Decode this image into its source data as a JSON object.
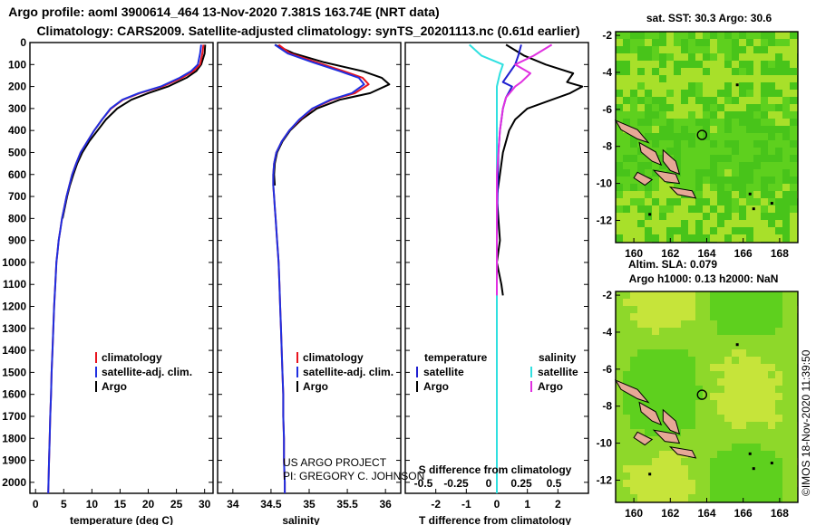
{
  "figure": {
    "title_line1": "Argo profile: aoml 3900614_464 13-Nov-2020 7.381S 163.74E (NRT data)",
    "title_line2": "Climatology: CARS2009. Satellite-adjusted climatology: synTS_20201113.nc (0.61d earlier)",
    "credit_line1": "US ARGO PROJECT",
    "credit_line2": "PI: GREGORY C. JOHNSON",
    "timestamp": "©IMOS 18-Nov-2020 11:39:50"
  },
  "colors": {
    "argo": "#000000",
    "climatology": "#e8141e",
    "satellite_adj": "#1f2fe0",
    "sat_temp_diff": "#2020d0",
    "sat_salt_diff": "#30e0e0",
    "argo_salt_diff": "#e030e0",
    "map_green": "#5ed01e",
    "map_yellow": "#e8e83a",
    "land": "#e6a896"
  },
  "chart_data": [
    {
      "type": "line",
      "xlabel": "temperature (deg C)",
      "ylabel": "",
      "xlim": [
        -1,
        31.5
      ],
      "ylim": [
        2050,
        0
      ],
      "x_ticks": [
        0,
        5,
        10,
        15,
        20,
        25,
        30
      ],
      "y_ticks": [
        0,
        100,
        200,
        300,
        400,
        500,
        600,
        700,
        800,
        900,
        1000,
        1100,
        1200,
        1300,
        1400,
        1500,
        1600,
        1700,
        1800,
        1900,
        2000
      ],
      "legend": [
        "climatology",
        "satellite-adj. clim.",
        "Argo"
      ],
      "series": [
        {
          "name": "Argo",
          "color_key": "argo",
          "x": [
            30.1,
            30.0,
            29.4,
            28.5,
            26.8,
            23.5,
            20.0,
            17.0,
            14.5,
            12.5,
            11.0,
            9.5,
            8.3,
            7.4,
            6.7,
            6.1,
            5.6,
            5.2,
            4.8
          ],
          "y": [
            10,
            50,
            100,
            130,
            160,
            200,
            230,
            260,
            300,
            350,
            400,
            450,
            500,
            550,
            600,
            650,
            700,
            750,
            800
          ]
        },
        {
          "name": "climatology",
          "color_key": "climatology",
          "x": [
            29.8,
            29.6,
            29.2,
            28.0,
            26.0,
            22.5,
            18.5,
            15.5,
            13.4,
            11.8,
            10.4,
            9.2,
            8.0,
            7.2,
            6.5,
            6.0,
            5.5,
            5.1,
            4.7,
            4.4,
            4.1,
            3.9,
            3.7,
            3.5,
            3.3,
            3.15,
            3.0,
            2.85,
            2.75,
            2.6,
            2.5,
            2.4,
            2.3,
            2.25
          ],
          "y": [
            10,
            50,
            100,
            130,
            160,
            200,
            230,
            260,
            300,
            350,
            400,
            450,
            500,
            550,
            600,
            650,
            700,
            750,
            800,
            850,
            900,
            950,
            1000,
            1100,
            1200,
            1300,
            1400,
            1500,
            1600,
            1700,
            1800,
            1900,
            2000,
            2050
          ]
        },
        {
          "name": "satellite-adj. clim.",
          "color_key": "satellite_adj",
          "x": [
            29.4,
            29.2,
            28.8,
            27.6,
            25.6,
            22.2,
            18.3,
            15.4,
            13.3,
            11.8,
            10.4,
            9.2,
            8.0,
            7.2,
            6.5,
            6.0,
            5.5,
            5.1,
            4.7,
            4.4,
            4.1,
            3.9,
            3.7,
            3.5,
            3.3,
            3.15,
            3.0,
            2.85,
            2.75,
            2.6,
            2.5,
            2.4,
            2.3,
            2.25
          ],
          "y": [
            10,
            50,
            100,
            130,
            160,
            200,
            230,
            260,
            300,
            350,
            400,
            450,
            500,
            550,
            600,
            650,
            700,
            750,
            800,
            850,
            900,
            950,
            1000,
            1100,
            1200,
            1300,
            1400,
            1500,
            1600,
            1700,
            1800,
            1900,
            2000,
            2050
          ]
        }
      ]
    },
    {
      "type": "line",
      "xlabel": "salinity",
      "ylabel": "",
      "xlim": [
        33.8,
        36.2
      ],
      "ylim": [
        2050,
        0
      ],
      "x_ticks": [
        34,
        34.5,
        35,
        35.5,
        36
      ],
      "legend": [
        "climatology",
        "satellite-adj. clim.",
        "Argo"
      ],
      "series": [
        {
          "name": "Argo",
          "color_key": "argo",
          "x": [
            34.55,
            34.8,
            35.2,
            35.7,
            35.95,
            36.05,
            35.8,
            35.4,
            35.1,
            34.9,
            34.75,
            34.65,
            34.58,
            34.55,
            34.54,
            34.55
          ],
          "y": [
            10,
            50,
            90,
            130,
            160,
            190,
            230,
            260,
            300,
            350,
            400,
            450,
            500,
            550,
            600,
            650
          ]
        },
        {
          "name": "climatology",
          "color_key": "climatology",
          "x": [
            34.6,
            34.75,
            35.1,
            35.45,
            35.7,
            35.78,
            35.6,
            35.3,
            35.05,
            34.88,
            34.74,
            34.64,
            34.57,
            34.54,
            34.53,
            34.53,
            34.54,
            34.55,
            34.56,
            34.57,
            34.58,
            34.6,
            34.61,
            34.62,
            34.63,
            34.64,
            34.65,
            34.66,
            34.66,
            34.67,
            34.67,
            34.68,
            34.68
          ],
          "y": [
            10,
            50,
            90,
            130,
            160,
            190,
            230,
            260,
            300,
            350,
            400,
            450,
            500,
            550,
            600,
            650,
            700,
            750,
            800,
            850,
            900,
            1000,
            1100,
            1200,
            1300,
            1400,
            1500,
            1600,
            1700,
            1800,
            1900,
            2000,
            2050
          ]
        },
        {
          "name": "satellite-adj. clim.",
          "color_key": "satellite_adj",
          "x": [
            34.55,
            34.72,
            35.05,
            35.4,
            35.65,
            35.72,
            35.56,
            35.28,
            35.04,
            34.87,
            34.74,
            34.64,
            34.57,
            34.54,
            34.53,
            34.53,
            34.54,
            34.55,
            34.56,
            34.57,
            34.58,
            34.6,
            34.61,
            34.62,
            34.63,
            34.64,
            34.65,
            34.66,
            34.66,
            34.67,
            34.67,
            34.68,
            34.68
          ],
          "y": [
            10,
            50,
            90,
            130,
            160,
            190,
            230,
            260,
            300,
            350,
            400,
            450,
            500,
            550,
            600,
            650,
            700,
            750,
            800,
            850,
            900,
            1000,
            1100,
            1200,
            1300,
            1400,
            1500,
            1600,
            1700,
            1800,
            1900,
            2000,
            2050
          ]
        }
      ]
    },
    {
      "type": "line",
      "xlabel": "T difference from climatology",
      "xlabel_top": "S difference from climatology",
      "xlim": [
        -3,
        3
      ],
      "ylim": [
        2050,
        0
      ],
      "x_ticks": [
        -2,
        -1,
        0,
        1,
        2
      ],
      "x_ticks_top": [
        "-0.5",
        "-0.25",
        "0",
        "0.25",
        "0.5"
      ],
      "legend_left_title": "temperature",
      "legend_right_title": "salinity",
      "legend": [
        "satellite",
        "Argo",
        "satellite",
        "Argo"
      ],
      "series": [
        {
          "name": "Argo",
          "color_key": "argo",
          "x": [
            0.3,
            0.9,
            1.6,
            2.5,
            2.3,
            2.8,
            2.4,
            1.8,
            1.0,
            0.6,
            0.4,
            0.2,
            0.1,
            0.0,
            0.05,
            0.1,
            0.0,
            0.15,
            0.2
          ],
          "y": [
            10,
            60,
            100,
            140,
            180,
            200,
            230,
            260,
            300,
            350,
            400,
            500,
            600,
            700,
            800,
            900,
            1000,
            1100,
            1150
          ]
        },
        {
          "name": "satellite",
          "color_key": "sat_temp_diff",
          "x": [
            0.8,
            0.7,
            0.6,
            0.4,
            0.2,
            0.5,
            0.3,
            0.2,
            0.1,
            0.05,
            0.02,
            0.0,
            0.0
          ],
          "y": [
            10,
            60,
            100,
            140,
            180,
            200,
            250,
            300,
            400,
            500,
            700,
            900,
            1150
          ]
        },
        {
          "name": "satellite",
          "color_key": "sat_salt_diff",
          "x": [
            -0.9,
            -0.5,
            0.2,
            0.1,
            0.0,
            0.0,
            0.0,
            0.0,
            0.0
          ],
          "y": [
            10,
            60,
            100,
            140,
            200,
            300,
            500,
            1000,
            2050
          ]
        },
        {
          "name": "Argo",
          "color_key": "argo_salt_diff",
          "x": [
            1.8,
            1.2,
            0.6,
            1.1,
            0.8,
            0.6,
            0.3,
            0.2,
            0.1,
            0.0,
            0.0
          ],
          "y": [
            10,
            60,
            100,
            140,
            180,
            200,
            250,
            300,
            400,
            600,
            1150
          ]
        }
      ]
    },
    {
      "type": "heatmap",
      "title": "sat. SST: 30.3 Argo: 30.6",
      "xlim": [
        159,
        169
      ],
      "ylim": [
        -13.2,
        -1.8
      ],
      "x_ticks": [
        160,
        162,
        164,
        166,
        168
      ],
      "y_ticks": [
        -2,
        -4,
        -6,
        -8,
        -10,
        -12
      ],
      "marker": {
        "lon": 163.74,
        "lat": -7.381
      }
    },
    {
      "type": "heatmap",
      "title": "Altim. SLA: 0.079",
      "subtitle": "Argo h1000: 0.13 h2000: NaN",
      "xlim": [
        159,
        169
      ],
      "ylim": [
        -13.2,
        -1.8
      ],
      "x_ticks": [
        160,
        162,
        164,
        166,
        168
      ],
      "y_ticks": [
        -2,
        -4,
        -6,
        -8,
        -10,
        -12
      ],
      "marker": {
        "lon": 163.74,
        "lat": -7.381
      }
    }
  ]
}
